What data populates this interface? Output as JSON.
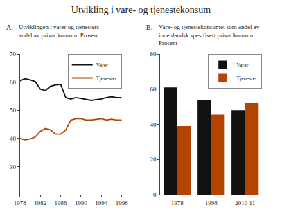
{
  "title": "Utvikling i vare- og tjenestekonsum",
  "chart_data": [
    {
      "type": "line",
      "title": "A.",
      "subtitle": "Utviklingen i varer og tjenesters\nandel av privat konsum. Prosent",
      "x": [
        1978,
        1979,
        1980,
        1981,
        1982,
        1983,
        1984,
        1985,
        1986,
        1987,
        1988,
        1989,
        1990,
        1991,
        1992,
        1993,
        1994,
        1995,
        1996,
        1997,
        1998
      ],
      "series": [
        {
          "name": "Varer",
          "color": "#111111",
          "values": [
            60.5,
            61.2,
            60.8,
            60.2,
            57.5,
            57.0,
            58.5,
            59.0,
            59.2,
            54.5,
            54.0,
            54.5,
            54.2,
            53.8,
            53.5,
            53.8,
            54.0,
            54.5,
            54.8,
            54.5,
            54.5
          ]
        },
        {
          "name": "Tjenester",
          "color": "#b34400",
          "values": [
            40.0,
            39.5,
            39.8,
            40.5,
            42.5,
            43.5,
            43.0,
            41.5,
            41.5,
            43.0,
            46.5,
            47.0,
            47.0,
            46.5,
            46.5,
            46.8,
            47.0,
            46.5,
            46.8,
            46.5,
            46.5
          ]
        }
      ],
      "xlim": [
        1978,
        1998
      ],
      "xticks": [
        1978,
        1982,
        1986,
        1990,
        1994,
        1998
      ],
      "ylim": [
        20,
        70
      ],
      "yticks": [
        30,
        40,
        50,
        60,
        70
      ],
      "y2lim": [
        20,
        70
      ],
      "y2ticks": [
        30,
        40,
        50,
        60,
        70
      ],
      "grid": false,
      "legend": "upper right"
    },
    {
      "type": "bar",
      "title": "B.",
      "subtitle": "Vare- og tjenestekonsumet som andel av\ninnenlandsk spesifisert privat konsum.\nProsent",
      "categories": [
        "1978",
        "1998",
        "2010 11"
      ],
      "series": [
        {
          "name": "Varer",
          "color": "#111111",
          "values": [
            61.0,
            54.0,
            48.0
          ]
        },
        {
          "name": "Tjenester",
          "color": "#b34400",
          "values": [
            39.0,
            45.5,
            52.0
          ]
        }
      ],
      "ylim": [
        0,
        80
      ],
      "yticks": [
        0,
        20,
        40,
        60,
        80
      ],
      "y2lim": [
        0,
        80
      ],
      "y2ticks": [
        0,
        20,
        40,
        60,
        80
      ],
      "grid": false,
      "legend": "upper right"
    }
  ]
}
